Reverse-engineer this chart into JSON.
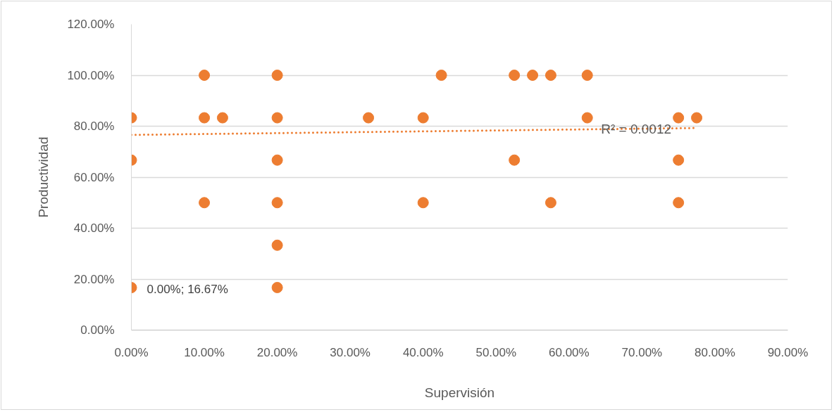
{
  "chart_data": {
    "type": "scatter",
    "xlabel": "Supervisión",
    "ylabel": "Productividad",
    "xlim": [
      0,
      90
    ],
    "ylim": [
      0,
      120
    ],
    "xticks": [
      {
        "value": 0,
        "label": "0.00%"
      },
      {
        "value": 10,
        "label": "10.00%"
      },
      {
        "value": 20,
        "label": "20.00%"
      },
      {
        "value": 30,
        "label": "30.00%"
      },
      {
        "value": 40,
        "label": "40.00%"
      },
      {
        "value": 50,
        "label": "50.00%"
      },
      {
        "value": 60,
        "label": "60.00%"
      },
      {
        "value": 70,
        "label": "70.00%"
      },
      {
        "value": 80,
        "label": "80.00%"
      },
      {
        "value": 90,
        "label": "90.00%"
      }
    ],
    "yticks": [
      {
        "value": 0,
        "label": "0.00%"
      },
      {
        "value": 20,
        "label": "20.00%"
      },
      {
        "value": 40,
        "label": "40.00%"
      },
      {
        "value": 60,
        "label": "60.00%"
      },
      {
        "value": 80,
        "label": "80.00%"
      },
      {
        "value": 100,
        "label": "100.00%"
      },
      {
        "value": 120,
        "label": "120.00%"
      }
    ],
    "grid": "y",
    "annotations": [
      {
        "text": "R² = 0.0012",
        "x": 69.2,
        "y": 78.9
      }
    ],
    "series": [
      {
        "marker": "circle",
        "color": "#ed7d31",
        "x": [
          0,
          0,
          0,
          10,
          10,
          10,
          12.5,
          20,
          20,
          20,
          20,
          20,
          20,
          32.5,
          40,
          40,
          42.5,
          52.5,
          52.5,
          55,
          57.5,
          57.5,
          62.5,
          62.5,
          75,
          75,
          75,
          77.5
        ],
        "values": [
          83.3,
          66.7,
          16.67,
          100,
          83.3,
          50,
          83.3,
          100,
          83.3,
          66.7,
          50,
          33.3,
          16.7,
          83.3,
          83.3,
          50,
          100,
          100,
          66.7,
          100,
          100,
          50,
          100,
          83.3,
          83.3,
          66.7,
          50,
          83.3
        ],
        "value_labels": [
          null,
          null,
          "0.00%; 16.67%",
          null,
          null,
          null,
          null,
          null,
          null,
          null,
          null,
          null,
          null,
          null,
          null,
          null,
          null,
          null,
          null,
          null,
          null,
          null,
          null,
          null,
          null,
          null,
          null,
          null
        ]
      },
      {
        "type": "line",
        "line_style": "dotted",
        "color": "#ed7d31",
        "x": [
          0,
          77.5
        ],
        "values": [
          76.6,
          79.3
        ]
      }
    ]
  }
}
